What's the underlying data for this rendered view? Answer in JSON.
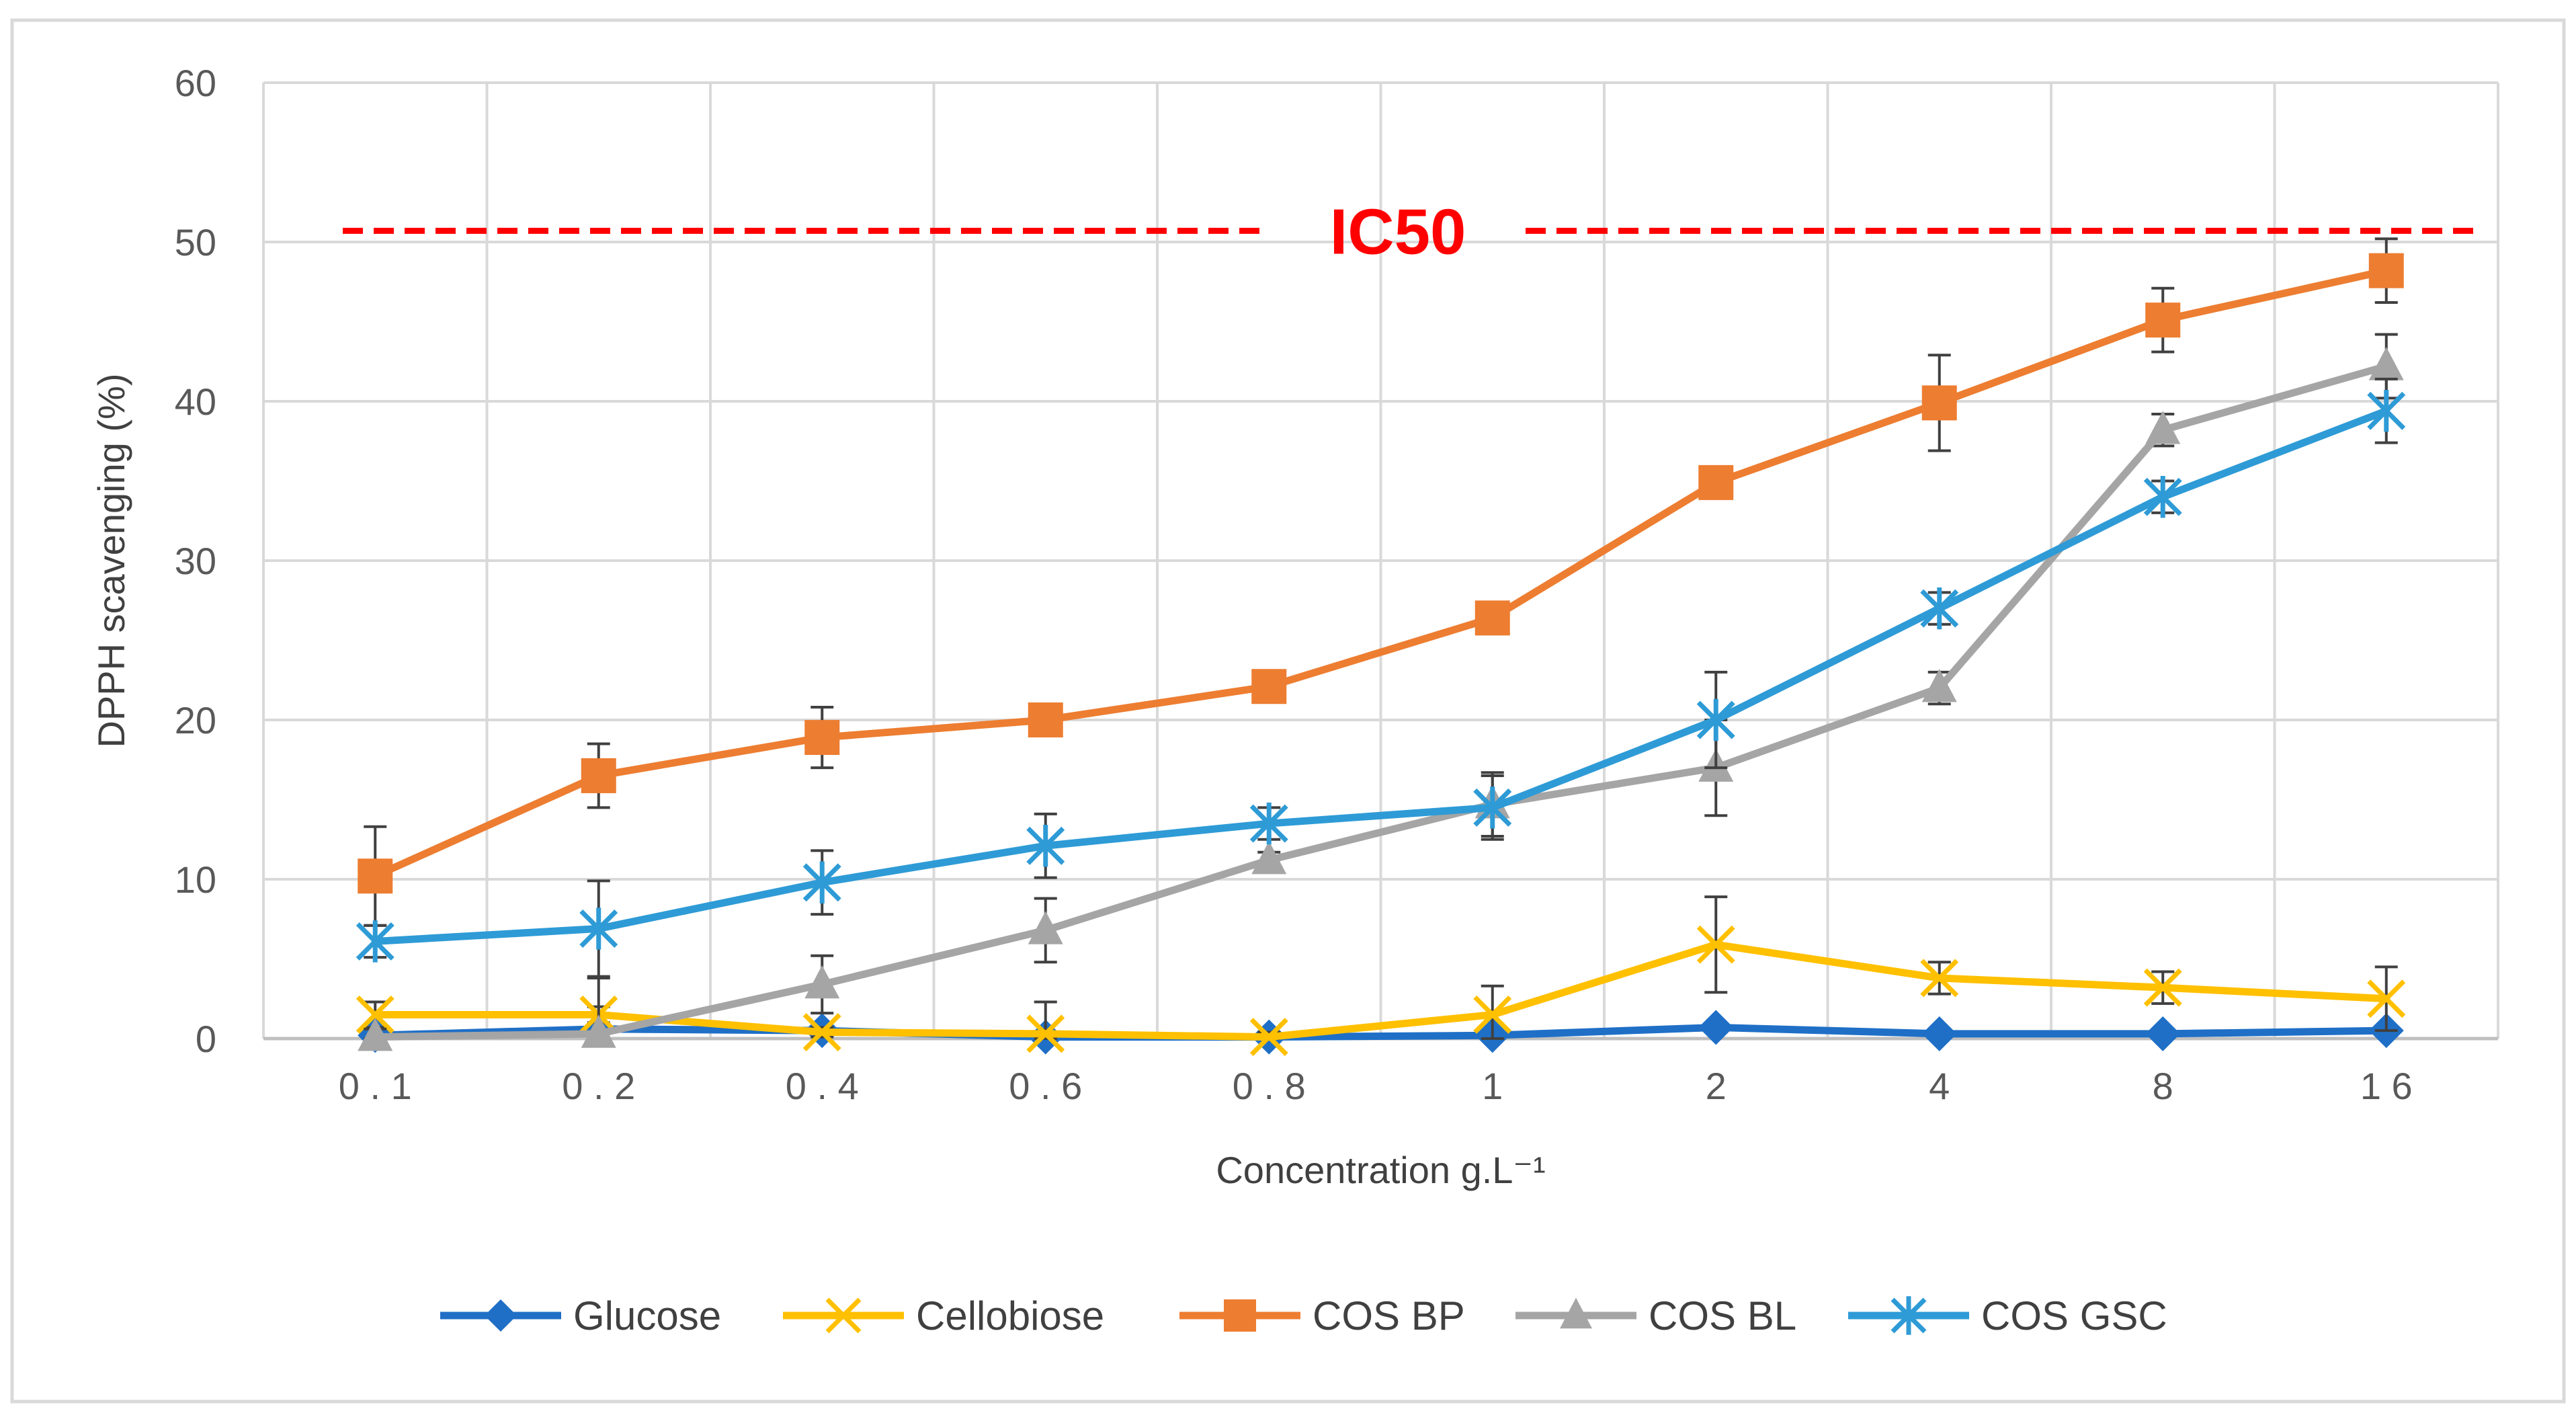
{
  "chart_data": {
    "type": "line",
    "title": "",
    "xlabel": "Concentration g.L⁻¹",
    "ylabel": "DPPH scavenging (%)",
    "categories": [
      "0.1",
      "0.2",
      "0.4",
      "0.6",
      "0.8",
      "1",
      "2",
      "4",
      "8",
      "16"
    ],
    "category_labels": [
      "0 . 1",
      "0 . 2",
      "0 . 4",
      "0 . 6",
      "0 . 8",
      "1",
      "2",
      "4",
      "8",
      "1 6"
    ],
    "ylim": [
      0,
      60
    ],
    "yticks": [
      0,
      10,
      20,
      30,
      40,
      50,
      60
    ],
    "grid": true,
    "legend_position": "bottom",
    "reference_line": {
      "label": "IC50",
      "value": 50.7,
      "color": "#ff0000",
      "style": "dashed"
    },
    "series": [
      {
        "name": "Glucose",
        "color": "#1f6fc6",
        "marker": "diamond",
        "values": [
          0.2,
          0.6,
          0.5,
          0.1,
          0.1,
          0.2,
          0.7,
          0.3,
          0.3,
          0.5
        ],
        "errors": [
          0,
          0,
          0,
          0,
          0,
          0,
          0,
          0,
          0,
          0
        ]
      },
      {
        "name": "Cellobiose",
        "color": "#ffc000",
        "marker": "x",
        "values": [
          1.5,
          1.5,
          0.4,
          0.3,
          0.1,
          1.5,
          5.9,
          3.8,
          3.2,
          2.5
        ],
        "errors": [
          0.8,
          0.5,
          0.3,
          2.0,
          0.3,
          1.8,
          3.0,
          1.0,
          1.0,
          2.0
        ]
      },
      {
        "name": "COS BP",
        "color": "#ed7d31",
        "marker": "square",
        "values": [
          10.2,
          16.5,
          18.9,
          20.0,
          22.1,
          26.4,
          34.9,
          39.9,
          45.1,
          48.2
        ],
        "errors": [
          3.1,
          2.0,
          1.9,
          0.5,
          0.5,
          0.5,
          0.5,
          3.0,
          2.0,
          2.0
        ]
      },
      {
        "name": "COS BL",
        "color": "#a5a5a5",
        "marker": "triangle",
        "values": [
          0.1,
          0.3,
          3.4,
          6.8,
          11.2,
          14.7,
          17.0,
          22.0,
          38.2,
          42.2
        ],
        "errors": [
          0.5,
          3.5,
          1.8,
          2.0,
          0.5,
          2.0,
          3.0,
          1.0,
          1.0,
          2.0
        ]
      },
      {
        "name": "COS GSC",
        "color": "#2e9bd6",
        "marker": "asterisk",
        "values": [
          6.1,
          6.9,
          9.8,
          12.1,
          13.5,
          14.5,
          20.0,
          27.0,
          34.0,
          39.4
        ],
        "errors": [
          1.0,
          3.0,
          2.0,
          2.0,
          1.0,
          2.0,
          3.0,
          1.0,
          1.0,
          2.0
        ]
      }
    ]
  }
}
